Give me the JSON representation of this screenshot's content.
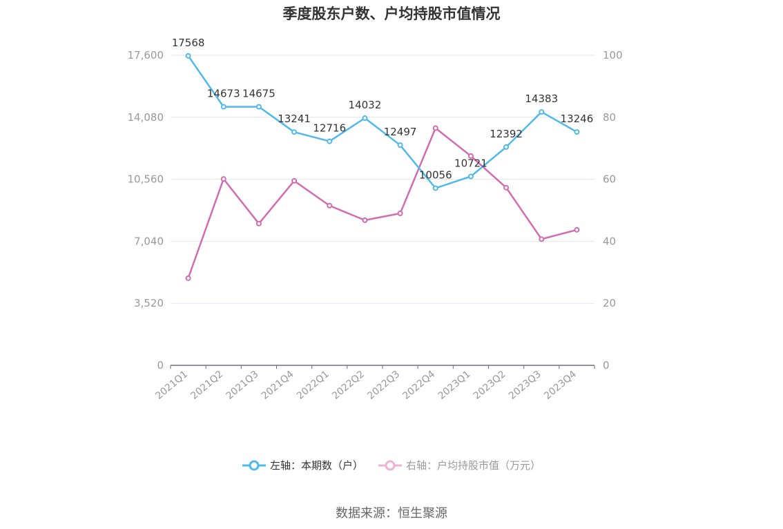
{
  "chart_data": {
    "type": "line",
    "title": "季度股东户数、户均持股市值情况",
    "categories": [
      "2021Q1",
      "2021Q2",
      "2021Q3",
      "2021Q4",
      "2022Q1",
      "2022Q2",
      "2022Q3",
      "2022Q4",
      "2023Q1",
      "2023Q2",
      "2023Q3",
      "2023Q4"
    ],
    "left_axis": {
      "ylim": [
        0,
        17600
      ],
      "ticks": [
        "0",
        "3,520",
        "7,040",
        "10,560",
        "14,080",
        "17,600"
      ]
    },
    "right_axis": {
      "ylim": [
        0,
        100
      ],
      "ticks": [
        "0",
        "20",
        "40",
        "60",
        "80",
        "100"
      ]
    },
    "series": [
      {
        "name": "左轴：本期数（户）",
        "axis": "left",
        "color": "#4fb9ec",
        "values": [
          17568,
          14673,
          14675,
          13241,
          12716,
          14032,
          12497,
          10056,
          10721,
          12392,
          14383,
          13246
        ],
        "labels": [
          "17568",
          "14673",
          "14675",
          "13241",
          "12716",
          "14032",
          "12497",
          "10056",
          "10721",
          "12392",
          "14383",
          "13246"
        ]
      },
      {
        "name": "右轴：户均持股市值（万元）",
        "axis": "right",
        "color": "#d36bb0",
        "values": [
          28.1,
          60.1,
          45.7,
          59.5,
          51.5,
          46.8,
          49.0,
          76.5,
          67.5,
          57.3,
          40.7,
          43.7
        ]
      }
    ],
    "legend_position": "bottom",
    "grid": true
  },
  "legend": {
    "left_label": "左轴：本期数（户）",
    "right_label": "右轴：户均持股市值（万元）"
  },
  "source": "数据来源：恒生聚源"
}
